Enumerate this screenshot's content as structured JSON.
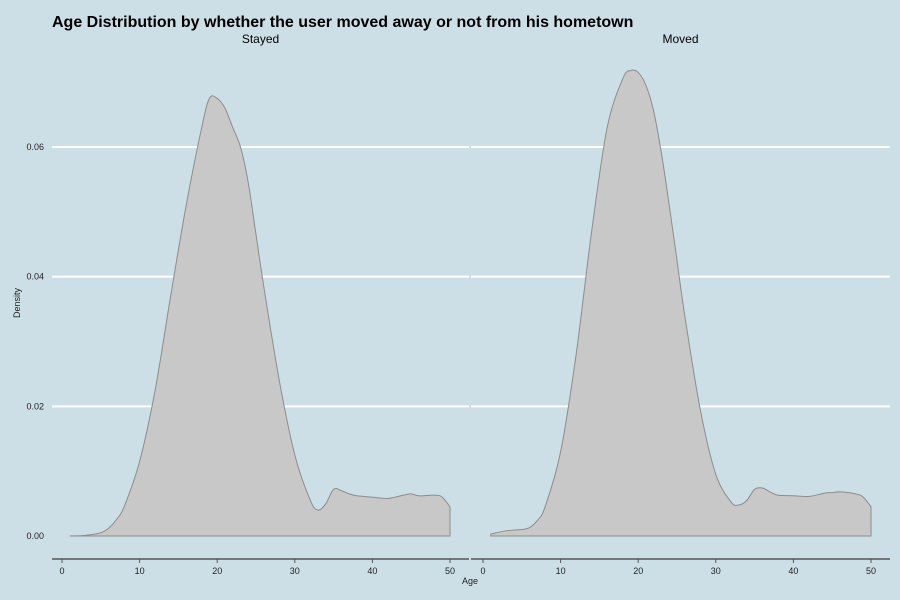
{
  "chart_data": {
    "type": "area",
    "title": "Age Distribution by whether the user moved away or not from his hometown",
    "xlabel": "Age",
    "ylabel": "Density",
    "xlim": [
      0,
      50
    ],
    "ylim": [
      0,
      0.072
    ],
    "x_ticks": [
      0,
      10,
      20,
      30,
      40,
      50
    ],
    "x_tick_labels": [
      "0",
      "10",
      "20",
      "30",
      "40",
      "50"
    ],
    "y_ticks": [
      0,
      0.02,
      0.04,
      0.06
    ],
    "y_tick_labels": [
      "0.00",
      "0.02",
      "0.04",
      "0.06"
    ],
    "grid": "horizontal",
    "series": [
      {
        "name": "Stayed",
        "x": [
          1,
          3,
          5,
          6,
          7,
          8,
          10,
          12,
          14,
          16,
          18,
          19,
          20,
          21,
          22,
          23,
          24,
          25,
          26,
          28,
          30,
          32,
          33,
          34,
          35,
          36,
          37,
          38,
          40,
          42,
          44,
          45,
          46,
          48,
          49,
          50
        ],
        "y": [
          0.0,
          0.0001,
          0.0005,
          0.0012,
          0.0025,
          0.0045,
          0.0115,
          0.0225,
          0.037,
          0.051,
          0.063,
          0.0675,
          0.0675,
          0.066,
          0.063,
          0.06,
          0.0545,
          0.0465,
          0.0385,
          0.024,
          0.0125,
          0.0055,
          0.004,
          0.005,
          0.0072,
          0.007,
          0.0065,
          0.0062,
          0.006,
          0.0058,
          0.0063,
          0.0065,
          0.0062,
          0.0063,
          0.006,
          0.0045
        ]
      },
      {
        "name": "Moved",
        "x": [
          1,
          3,
          5,
          6,
          7,
          8,
          10,
          12,
          14,
          16,
          18,
          19,
          20,
          21,
          22,
          23,
          24,
          25,
          26,
          28,
          30,
          32,
          33,
          34,
          35,
          36,
          37,
          38,
          40,
          42,
          44,
          45,
          46,
          48,
          49,
          50
        ],
        "y": [
          0.0003,
          0.0008,
          0.001,
          0.0013,
          0.0024,
          0.0045,
          0.013,
          0.028,
          0.047,
          0.063,
          0.0705,
          0.0718,
          0.0715,
          0.0695,
          0.0655,
          0.059,
          0.051,
          0.0425,
          0.034,
          0.0195,
          0.0095,
          0.0052,
          0.0048,
          0.0055,
          0.0072,
          0.0074,
          0.0068,
          0.0063,
          0.0062,
          0.0061,
          0.0066,
          0.0067,
          0.0068,
          0.0065,
          0.006,
          0.0045
        ]
      }
    ]
  }
}
